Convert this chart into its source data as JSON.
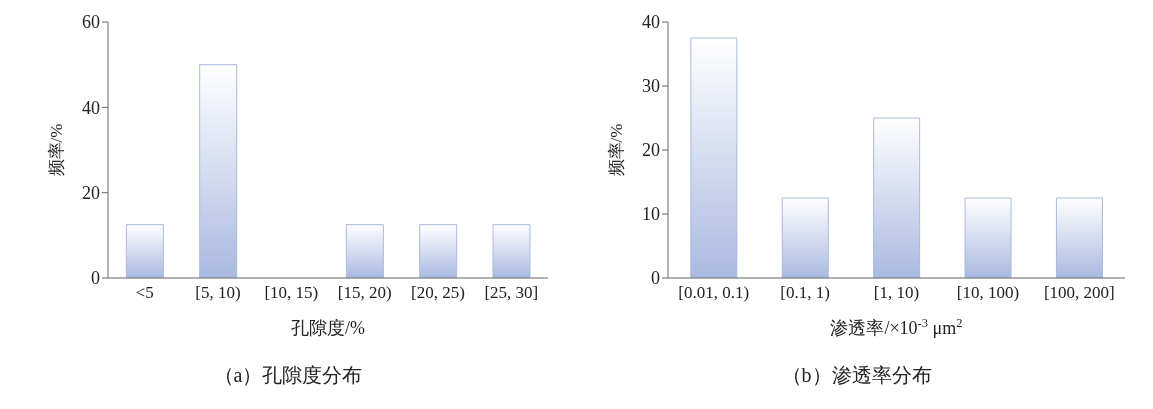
{
  "chart_data": [
    {
      "type": "bar",
      "title": "（a）孔隙度分布",
      "xlabel": "孔隙度/%",
      "ylabel": "频率/%",
      "categories": [
        "<5",
        "[5, 10)",
        "[10, 15)",
        "[15, 20)",
        "[20, 25)",
        "[25, 30]"
      ],
      "values": [
        12.5,
        50,
        0,
        12.5,
        12.5,
        12.5
      ],
      "color": "#a9b9e0",
      "ylim": [
        0,
        60
      ],
      "yticks": [
        0,
        20,
        40,
        60
      ],
      "grid": false,
      "legend": false
    },
    {
      "type": "bar",
      "title": "（b）渗透率分布",
      "xlabel": "渗透率/×10$^{-3}$ μm$^{2}$",
      "ylabel": "频率/%",
      "categories": [
        "[0.01, 0.1)",
        "[0.1, 1)",
        "[1, 10)",
        "[10, 100)",
        "[100, 200]"
      ],
      "values": [
        37.5,
        12.5,
        25,
        12.5,
        12.5
      ],
      "color": "#a9b9e0",
      "ylim": [
        0,
        40
      ],
      "yticks": [
        0,
        10,
        20,
        30,
        40
      ],
      "grid": false,
      "legend": false
    }
  ]
}
